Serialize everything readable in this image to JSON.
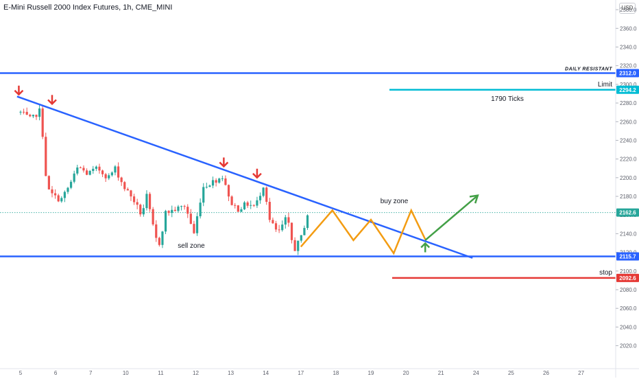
{
  "header": {
    "title": "E-Mini Russell 2000 Index Futures, 1h, CME_MINI",
    "currency": "USD"
  },
  "chart_data": {
    "type": "candlestick",
    "ylim": [
      2015,
      2400
    ],
    "y_ticks": [
      2380.0,
      2360.0,
      2340.0,
      2320.0,
      2300.0,
      2280.0,
      2260.0,
      2240.0,
      2220.0,
      2200.0,
      2180.0,
      2160.0,
      2140.0,
      2120.0,
      2100.0,
      2080.0,
      2060.0,
      2040.0,
      2020.0
    ],
    "x_ticks": [
      {
        "label": "5",
        "i": 0
      },
      {
        "label": "6",
        "i": 2
      },
      {
        "label": "7",
        "i": 4
      },
      {
        "label": "10",
        "i": 6
      },
      {
        "label": "11",
        "i": 8
      },
      {
        "label": "12",
        "i": 10
      },
      {
        "label": "13",
        "i": 12
      },
      {
        "label": "14",
        "i": 14
      },
      {
        "label": "17",
        "i": 16
      },
      {
        "label": "18",
        "i": 18
      },
      {
        "label": "19",
        "i": 20
      },
      {
        "label": "20",
        "i": 22
      },
      {
        "label": "21",
        "i": 24
      },
      {
        "label": "24",
        "i": 26
      },
      {
        "label": "25",
        "i": 28
      },
      {
        "label": "26",
        "i": 30
      },
      {
        "label": "27",
        "i": 32
      }
    ],
    "colors": {
      "up": "#26a69a",
      "down": "#ef5350",
      "trend": "#2962ff",
      "target": "#f39c12",
      "arrow": "#43a047",
      "limit": "#00bcd4",
      "stop": "#e53935"
    },
    "price_path": [
      {
        "i": 0.0,
        "p": 2270
      },
      {
        "i": 0.6,
        "p": 2262
      },
      {
        "i": 1.1,
        "p": 2272
      },
      {
        "i": 1.3,
        "p": 2240
      },
      {
        "i": 1.5,
        "p": 2188
      },
      {
        "i": 1.9,
        "p": 2180
      },
      {
        "i": 2.3,
        "p": 2176
      },
      {
        "i": 2.8,
        "p": 2192
      },
      {
        "i": 3.3,
        "p": 2212
      },
      {
        "i": 3.8,
        "p": 2204
      },
      {
        "i": 4.4,
        "p": 2210
      },
      {
        "i": 5.0,
        "p": 2200
      },
      {
        "i": 5.4,
        "p": 2210
      },
      {
        "i": 5.9,
        "p": 2190
      },
      {
        "i": 6.4,
        "p": 2178
      },
      {
        "i": 6.9,
        "p": 2160
      },
      {
        "i": 7.2,
        "p": 2180
      },
      {
        "i": 7.7,
        "p": 2135
      },
      {
        "i": 8.0,
        "p": 2128
      },
      {
        "i": 8.2,
        "p": 2162
      },
      {
        "i": 8.7,
        "p": 2165
      },
      {
        "i": 9.4,
        "p": 2170
      },
      {
        "i": 9.9,
        "p": 2140
      },
      {
        "i": 10.4,
        "p": 2190
      },
      {
        "i": 11.0,
        "p": 2196
      },
      {
        "i": 11.6,
        "p": 2202
      },
      {
        "i": 11.9,
        "p": 2176
      },
      {
        "i": 12.4,
        "p": 2166
      },
      {
        "i": 12.9,
        "p": 2172
      },
      {
        "i": 13.4,
        "p": 2169
      },
      {
        "i": 13.9,
        "p": 2194
      },
      {
        "i": 14.2,
        "p": 2155
      },
      {
        "i": 14.7,
        "p": 2140
      },
      {
        "i": 15.2,
        "p": 2158
      },
      {
        "i": 15.6,
        "p": 2122
      },
      {
        "i": 16.0,
        "p": 2135
      },
      {
        "i": 16.4,
        "p": 2162
      }
    ],
    "current_price": 2162.6,
    "annotations": {
      "daily_resistant": {
        "label": "DAILY RESISTANT",
        "value": 2312.0,
        "tag": "2312.0"
      },
      "limit": {
        "label": "Limit",
        "value": 2294.2,
        "tag": "2294.2",
        "distance_label": "1790 Ticks"
      },
      "current": {
        "tag": "2162.6"
      },
      "support": {
        "value": 2115.7,
        "tag": "2115.7"
      },
      "stop": {
        "label": "stop",
        "value": 2092.6,
        "tag": "2092.6"
      },
      "sell_zone": {
        "label": "sell zone"
      },
      "buy_zone": {
        "label": "buy zone"
      }
    },
    "trendline": [
      {
        "i": -0.2,
        "p": 2287
      },
      {
        "i": 25.8,
        "p": 2114
      }
    ],
    "sell_arrows": [
      {
        "i": -0.1,
        "p": 2292
      },
      {
        "i": 1.8,
        "p": 2282
      },
      {
        "i": 11.6,
        "p": 2215
      },
      {
        "i": 13.5,
        "p": 2203
      }
    ],
    "target_path": [
      {
        "i": 16.0,
        "p": 2126
      },
      {
        "i": 17.8,
        "p": 2165
      },
      {
        "i": 19.0,
        "p": 2133
      },
      {
        "i": 20.0,
        "p": 2155
      },
      {
        "i": 21.3,
        "p": 2119
      },
      {
        "i": 22.3,
        "p": 2165
      },
      {
        "i": 23.1,
        "p": 2134
      }
    ],
    "buy_arrow": {
      "from": {
        "i": 23.1,
        "p": 2133
      },
      "to": {
        "i": 26.1,
        "p": 2181
      }
    },
    "up_arrow": {
      "i": 23.1,
      "p": 2123
    }
  }
}
